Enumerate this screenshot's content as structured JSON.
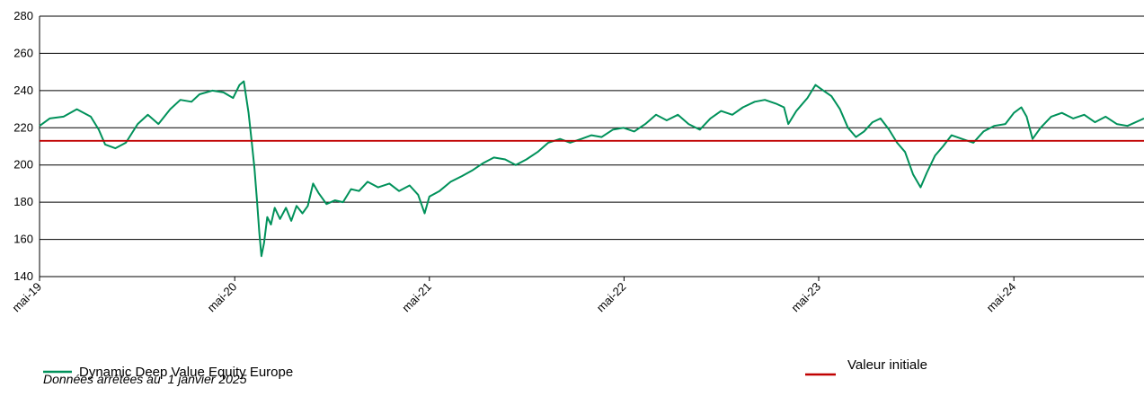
{
  "chart_data": {
    "type": "line",
    "title": "",
    "xlabel": "",
    "ylabel": "",
    "ylim": [
      140,
      280
    ],
    "y_ticks": [
      140,
      160,
      180,
      200,
      220,
      240,
      260,
      280
    ],
    "x_range": [
      "2019-05-01",
      "2024-12-31"
    ],
    "x_ticks": [
      {
        "date": "2019-05-01",
        "label": "mai-19"
      },
      {
        "date": "2020-05-01",
        "label": "mai-20"
      },
      {
        "date": "2021-05-01",
        "label": "mai-21"
      },
      {
        "date": "2022-05-01",
        "label": "mai-22"
      },
      {
        "date": "2023-05-01",
        "label": "mai-23"
      },
      {
        "date": "2024-05-01",
        "label": "mai-24"
      }
    ],
    "grid": "horizontal",
    "legend_position": "bottom",
    "series": [
      {
        "name": "Dynamic Deep Value Equity Europe",
        "color": "#00915A",
        "points": [
          [
            "2019-05-01",
            221
          ],
          [
            "2019-05-20",
            225
          ],
          [
            "2019-06-15",
            226
          ],
          [
            "2019-07-10",
            230
          ],
          [
            "2019-08-05",
            226
          ],
          [
            "2019-08-20",
            219
          ],
          [
            "2019-09-01",
            211
          ],
          [
            "2019-09-20",
            209
          ],
          [
            "2019-10-10",
            212
          ],
          [
            "2019-11-01",
            222
          ],
          [
            "2019-11-20",
            227
          ],
          [
            "2019-12-10",
            222
          ],
          [
            "2020-01-01",
            230
          ],
          [
            "2020-01-20",
            235
          ],
          [
            "2020-02-10",
            234
          ],
          [
            "2020-02-25",
            238
          ],
          [
            "2020-03-20",
            240
          ],
          [
            "2020-04-10",
            239
          ],
          [
            "2020-04-28",
            236
          ],
          [
            "2020-05-10",
            243
          ],
          [
            "2020-05-18",
            245
          ],
          [
            "2020-05-27",
            228
          ],
          [
            "2020-06-02",
            212
          ],
          [
            "2020-06-07",
            198
          ],
          [
            "2020-06-12",
            180
          ],
          [
            "2020-06-16",
            164
          ],
          [
            "2020-06-20",
            151
          ],
          [
            "2020-06-25",
            158
          ],
          [
            "2020-07-01",
            172
          ],
          [
            "2020-07-08",
            168
          ],
          [
            "2020-07-15",
            177
          ],
          [
            "2020-07-25",
            171
          ],
          [
            "2020-08-05",
            177
          ],
          [
            "2020-08-15",
            170
          ],
          [
            "2020-08-25",
            178
          ],
          [
            "2020-09-05",
            174
          ],
          [
            "2020-09-15",
            178
          ],
          [
            "2020-09-25",
            190
          ],
          [
            "2020-10-05",
            185
          ],
          [
            "2020-10-20",
            179
          ],
          [
            "2020-11-05",
            181
          ],
          [
            "2020-11-20",
            180
          ],
          [
            "2020-12-05",
            187
          ],
          [
            "2020-12-20",
            186
          ],
          [
            "2021-01-05",
            191
          ],
          [
            "2021-01-25",
            188
          ],
          [
            "2021-02-15",
            190
          ],
          [
            "2021-03-05",
            186
          ],
          [
            "2021-03-25",
            189
          ],
          [
            "2021-04-10",
            184
          ],
          [
            "2021-04-22",
            174
          ],
          [
            "2021-05-01",
            183
          ],
          [
            "2021-05-20",
            186
          ],
          [
            "2021-06-10",
            191
          ],
          [
            "2021-07-01",
            194
          ],
          [
            "2021-07-20",
            197
          ],
          [
            "2021-08-10",
            201
          ],
          [
            "2021-08-30",
            204
          ],
          [
            "2021-09-20",
            203
          ],
          [
            "2021-10-10",
            200
          ],
          [
            "2021-10-30",
            203
          ],
          [
            "2021-11-20",
            207
          ],
          [
            "2021-12-10",
            212
          ],
          [
            "2022-01-01",
            214
          ],
          [
            "2022-01-20",
            212
          ],
          [
            "2022-02-10",
            214
          ],
          [
            "2022-03-01",
            216
          ],
          [
            "2022-03-20",
            215
          ],
          [
            "2022-04-10",
            219
          ],
          [
            "2022-04-30",
            220
          ],
          [
            "2022-05-20",
            218
          ],
          [
            "2022-06-10",
            222
          ],
          [
            "2022-06-30",
            227
          ],
          [
            "2022-07-20",
            224
          ],
          [
            "2022-08-10",
            227
          ],
          [
            "2022-08-30",
            222
          ],
          [
            "2022-09-20",
            219
          ],
          [
            "2022-10-10",
            225
          ],
          [
            "2022-10-30",
            229
          ],
          [
            "2022-11-20",
            227
          ],
          [
            "2022-12-10",
            231
          ],
          [
            "2023-01-01",
            234
          ],
          [
            "2023-01-20",
            235
          ],
          [
            "2023-02-10",
            233
          ],
          [
            "2023-02-25",
            231
          ],
          [
            "2023-03-05",
            222
          ],
          [
            "2023-03-20",
            229
          ],
          [
            "2023-04-10",
            236
          ],
          [
            "2023-04-25",
            243
          ],
          [
            "2023-05-10",
            240
          ],
          [
            "2023-05-25",
            237
          ],
          [
            "2023-06-10",
            230
          ],
          [
            "2023-06-25",
            220
          ],
          [
            "2023-07-10",
            215
          ],
          [
            "2023-07-25",
            218
          ],
          [
            "2023-08-10",
            223
          ],
          [
            "2023-08-25",
            225
          ],
          [
            "2023-09-10",
            219
          ],
          [
            "2023-09-25",
            212
          ],
          [
            "2023-10-10",
            207
          ],
          [
            "2023-10-25",
            195
          ],
          [
            "2023-11-08",
            188
          ],
          [
            "2023-11-20",
            196
          ],
          [
            "2023-12-05",
            205
          ],
          [
            "2023-12-20",
            210
          ],
          [
            "2024-01-05",
            216
          ],
          [
            "2024-01-25",
            214
          ],
          [
            "2024-02-15",
            212
          ],
          [
            "2024-03-05",
            218
          ],
          [
            "2024-03-25",
            221
          ],
          [
            "2024-04-15",
            222
          ],
          [
            "2024-05-01",
            228
          ],
          [
            "2024-05-15",
            231
          ],
          [
            "2024-05-25",
            226
          ],
          [
            "2024-06-05",
            214
          ],
          [
            "2024-06-20",
            220
          ],
          [
            "2024-07-10",
            226
          ],
          [
            "2024-07-30",
            228
          ],
          [
            "2024-08-20",
            225
          ],
          [
            "2024-09-10",
            227
          ],
          [
            "2024-09-30",
            223
          ],
          [
            "2024-10-20",
            226
          ],
          [
            "2024-11-10",
            222
          ],
          [
            "2024-11-30",
            221
          ],
          [
            "2024-12-31",
            225
          ]
        ]
      },
      {
        "name": "Valeur initiale",
        "color": "#C00000",
        "points": [
          [
            "2019-05-01",
            213
          ],
          [
            "2024-12-31",
            213
          ]
        ]
      }
    ]
  },
  "footnote": "Données arrêtées au  1 janvier 2025"
}
